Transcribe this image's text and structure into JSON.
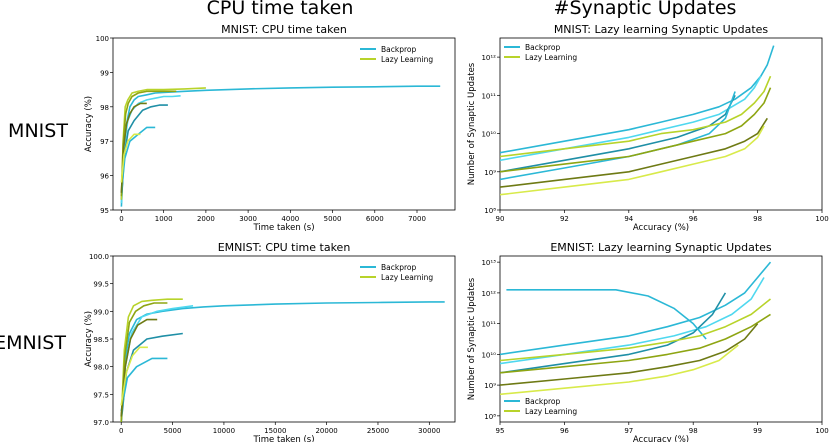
{
  "column_titles": [
    "CPU time taken",
    "#Synaptic Updates"
  ],
  "row_labels": [
    "MNIST",
    "EMNIST"
  ],
  "colors": {
    "backprop": [
      "#2bb8d6",
      "#4fd8ef",
      "#1f8fa6"
    ],
    "lazy": [
      "#b8d32a",
      "#8ea512",
      "#6e7a14",
      "#d8ea4a"
    ]
  },
  "chart_data": [
    {
      "type": "line",
      "title": "MNIST: CPU time taken",
      "xlabel": "Time taken (s)",
      "ylabel": "Accuracy (%)",
      "xlim": [
        -200,
        7900
      ],
      "ylim": [
        95,
        100
      ],
      "xticks": [
        0,
        1000,
        2000,
        3000,
        4000,
        5000,
        6000,
        7000
      ],
      "yticks": [
        95,
        96,
        97,
        98,
        99,
        100
      ],
      "legend_position": "top-right",
      "series": [
        {
          "name": "Backprop",
          "runs": [
            {
              "x": [
                0,
                50,
                120,
                200,
                300,
                400,
                600,
                800,
                1000,
                1500,
                2000,
                3000,
                4000,
                5000,
                6000,
                7000,
                7550
              ],
              "y": [
                95.1,
                96.5,
                97.5,
                98.0,
                98.2,
                98.3,
                98.35,
                98.4,
                98.42,
                98.45,
                98.48,
                98.52,
                98.55,
                98.57,
                98.58,
                98.6,
                98.6
              ]
            },
            {
              "x": [
                0,
                60,
                150,
                250,
                400,
                600,
                800,
                1000,
                1200,
                1400
              ],
              "y": [
                95.2,
                96.8,
                97.6,
                97.9,
                98.1,
                98.2,
                98.25,
                98.3,
                98.3,
                98.32
              ]
            },
            {
              "x": [
                0,
                70,
                160,
                300,
                500,
                700,
                900,
                1100
              ],
              "y": [
                95.3,
                96.6,
                97.3,
                97.6,
                97.9,
                98.0,
                98.05,
                98.05
              ]
            },
            {
              "x": [
                0,
                80,
                200,
                400,
                600,
                800
              ],
              "y": [
                95.5,
                96.5,
                97.0,
                97.2,
                97.4,
                97.4
              ]
            }
          ]
        },
        {
          "name": "Lazy Learning",
          "runs": [
            {
              "x": [
                0,
                40,
                90,
                150,
                250,
                400,
                600,
                800,
                1000,
                1500,
                2000
              ],
              "y": [
                95.3,
                97.0,
                98.0,
                98.2,
                98.4,
                98.45,
                98.5,
                98.5,
                98.5,
                98.52,
                98.55
              ]
            },
            {
              "x": [
                0,
                40,
                100,
                160,
                250,
                400,
                600,
                800,
                1000,
                1300
              ],
              "y": [
                95.4,
                96.9,
                97.8,
                98.1,
                98.3,
                98.4,
                98.45,
                98.45,
                98.45,
                98.45
              ]
            },
            {
              "x": [
                0,
                50,
                120,
                200,
                300,
                450,
                600
              ],
              "y": [
                95.5,
                96.8,
                97.5,
                97.8,
                98.0,
                98.1,
                98.1
              ]
            },
            {
              "x": [
                0,
                60,
                150,
                300,
                450
              ],
              "y": [
                95.8,
                96.6,
                97.0,
                97.2,
                97.2
              ]
            }
          ]
        }
      ]
    },
    {
      "type": "line",
      "title": "MNIST: Lazy learning Synaptic Updates",
      "xlabel": "Accuracy (%)",
      "ylabel": "Number of Synaptic Updates",
      "xlim": [
        90,
        100
      ],
      "ylim": [
        8,
        12.5
      ],
      "y_scale": "log",
      "xticks": [
        90,
        92,
        94,
        96,
        98,
        100
      ],
      "ytick_exponents": [
        8,
        9,
        10,
        11,
        12
      ],
      "legend_position": "top-left",
      "series": [
        {
          "name": "Backprop",
          "runs": [
            {
              "x": [
                90,
                92,
                94,
                95,
                96,
                96.8,
                97.3,
                97.8,
                98.1,
                98.3,
                98.5
              ],
              "y": [
                9.5,
                9.8,
                10.1,
                10.3,
                10.5,
                10.7,
                10.9,
                11.2,
                11.5,
                11.8,
                12.3
              ]
            },
            {
              "x": [
                90,
                92,
                94,
                95,
                96,
                96.8,
                97.2,
                97.6,
                97.9,
                98.1
              ],
              "y": [
                9.3,
                9.6,
                9.9,
                10.1,
                10.3,
                10.5,
                10.7,
                10.9,
                11.2,
                11.5
              ]
            },
            {
              "x": [
                90,
                92,
                94,
                95.5,
                96.5,
                97,
                97.3
              ],
              "y": [
                9.0,
                9.3,
                9.6,
                9.9,
                10.2,
                10.5,
                11.0
              ]
            },
            {
              "x": [
                90,
                92,
                94,
                95.5,
                96.5,
                97,
                97.3
              ],
              "y": [
                8.8,
                9.1,
                9.4,
                9.7,
                10.0,
                10.4,
                11.1
              ]
            }
          ]
        },
        {
          "name": "Lazy Learning",
          "runs": [
            {
              "x": [
                90,
                92,
                94,
                95,
                96,
                97,
                97.5,
                97.9,
                98.2,
                98.4
              ],
              "y": [
                9.4,
                9.6,
                9.8,
                10.0,
                10.1,
                10.3,
                10.5,
                10.8,
                11.1,
                11.5
              ]
            },
            {
              "x": [
                90,
                92,
                94,
                95,
                96,
                97,
                97.5,
                97.9,
                98.2,
                98.4
              ],
              "y": [
                9.0,
                9.2,
                9.4,
                9.6,
                9.8,
                10.0,
                10.2,
                10.5,
                10.8,
                11.2
              ]
            },
            {
              "x": [
                90,
                92,
                94,
                95,
                96,
                97,
                97.6,
                98.0,
                98.3
              ],
              "y": [
                8.6,
                8.8,
                9.0,
                9.2,
                9.4,
                9.6,
                9.8,
                10.0,
                10.4
              ]
            },
            {
              "x": [
                90,
                92,
                94,
                95,
                96,
                97,
                97.6,
                98.0,
                98.2
              ],
              "y": [
                8.4,
                8.6,
                8.8,
                9.0,
                9.2,
                9.4,
                9.6,
                9.9,
                10.2
              ]
            }
          ]
        }
      ]
    },
    {
      "type": "line",
      "title": "EMNIST: CPU time taken",
      "xlabel": "Time taken (s)",
      "ylabel": "Accuracy (%)",
      "xlim": [
        -800,
        32500
      ],
      "ylim": [
        97.0,
        100.0
      ],
      "xticks": [
        0,
        5000,
        10000,
        15000,
        20000,
        25000,
        30000
      ],
      "yticks": [
        97.0,
        97.5,
        98.0,
        98.5,
        99.0,
        99.5,
        100.0
      ],
      "legend_position": "top-right",
      "series": [
        {
          "name": "Backprop",
          "runs": [
            {
              "x": [
                0,
                300,
                800,
                1500,
                2500,
                4000,
                6000,
                8000,
                10000,
                15000,
                20000,
                25000,
                30000,
                31500
              ],
              "y": [
                97.0,
                98.0,
                98.6,
                98.85,
                98.95,
                99.0,
                99.05,
                99.08,
                99.1,
                99.13,
                99.15,
                99.16,
                99.17,
                99.17
              ]
            },
            {
              "x": [
                0,
                400,
                1000,
                2000,
                3500,
                5000,
                7000
              ],
              "y": [
                97.0,
                98.0,
                98.6,
                98.9,
                99.0,
                99.05,
                99.1
              ]
            },
            {
              "x": [
                0,
                500,
                1200,
                2500,
                4000,
                6000
              ],
              "y": [
                97.0,
                97.9,
                98.3,
                98.5,
                98.55,
                98.6
              ]
            },
            {
              "x": [
                0,
                600,
                1500,
                3000,
                4500
              ],
              "y": [
                97.2,
                97.8,
                98.0,
                98.15,
                98.15
              ]
            }
          ]
        },
        {
          "name": "Lazy Learning",
          "runs": [
            {
              "x": [
                0,
                300,
                700,
                1200,
                2000,
                3000,
                4500,
                6000
              ],
              "y": [
                97.0,
                98.3,
                98.9,
                99.1,
                99.18,
                99.2,
                99.22,
                99.22
              ]
            },
            {
              "x": [
                0,
                350,
                800,
                1400,
                2200,
                3200,
                4500
              ],
              "y": [
                97.0,
                98.2,
                98.8,
                99.0,
                99.1,
                99.15,
                99.15
              ]
            },
            {
              "x": [
                0,
                400,
                900,
                1600,
                2500,
                3500
              ],
              "y": [
                97.1,
                98.0,
                98.5,
                98.75,
                98.85,
                98.85
              ]
            },
            {
              "x": [
                0,
                500,
                1100,
                1800,
                2600
              ],
              "y": [
                97.3,
                97.9,
                98.2,
                98.35,
                98.35
              ]
            }
          ]
        }
      ]
    },
    {
      "type": "line",
      "title": "EMNIST: Lazy learning Synaptic Updates",
      "xlabel": "Accuracy (%)",
      "ylabel": "Number of Synaptic Updates",
      "xlim": [
        95,
        100
      ],
      "ylim": [
        7.8,
        13.2
      ],
      "y_scale": "log",
      "xticks": [
        95,
        96,
        97,
        98,
        99,
        100
      ],
      "ytick_exponents": [
        8,
        9,
        10,
        11,
        12,
        13
      ],
      "legend_position": "bottom-left",
      "series": [
        {
          "name": "Backprop",
          "runs": [
            {
              "x": [
                95,
                96,
                97,
                97.6,
                98.1,
                98.5,
                98.8,
                99.0,
                99.2
              ],
              "y": [
                10.0,
                10.3,
                10.6,
                10.9,
                11.2,
                11.6,
                12.0,
                12.5,
                13.0
              ]
            },
            {
              "x": [
                95,
                96,
                97,
                97.7,
                98.2,
                98.6,
                98.9,
                99.1
              ],
              "y": [
                9.7,
                10.0,
                10.3,
                10.6,
                10.9,
                11.3,
                11.8,
                12.5
              ]
            },
            {
              "x": [
                95,
                96,
                97,
                97.6,
                98.0,
                98.3,
                98.5
              ],
              "y": [
                9.4,
                9.7,
                10.0,
                10.3,
                10.7,
                11.3,
                12.0
              ]
            },
            {
              "x": [
                95.1,
                96,
                96.8,
                97.3,
                97.7,
                98.0,
                98.2
              ],
              "y": [
                12.1,
                12.1,
                12.1,
                11.9,
                11.5,
                11.0,
                10.5
              ]
            }
          ]
        },
        {
          "name": "Lazy Learning",
          "runs": [
            {
              "x": [
                95,
                96,
                97,
                97.6,
                98.1,
                98.5,
                98.9,
                99.2
              ],
              "y": [
                9.8,
                10.0,
                10.2,
                10.4,
                10.6,
                10.9,
                11.3,
                11.8
              ]
            },
            {
              "x": [
                95,
                96,
                97,
                97.6,
                98.1,
                98.5,
                98.9,
                99.2
              ],
              "y": [
                9.4,
                9.6,
                9.8,
                10.0,
                10.2,
                10.5,
                10.9,
                11.3
              ]
            },
            {
              "x": [
                95,
                96,
                97,
                97.6,
                98.1,
                98.5,
                98.8,
                99.0
              ],
              "y": [
                9.0,
                9.2,
                9.4,
                9.6,
                9.8,
                10.1,
                10.5,
                11.0
              ]
            },
            {
              "x": [
                95,
                96,
                97,
                97.6,
                98.0,
                98.4,
                98.7
              ],
              "y": [
                8.7,
                8.9,
                9.1,
                9.3,
                9.5,
                9.8,
                10.3
              ]
            }
          ]
        }
      ]
    }
  ]
}
